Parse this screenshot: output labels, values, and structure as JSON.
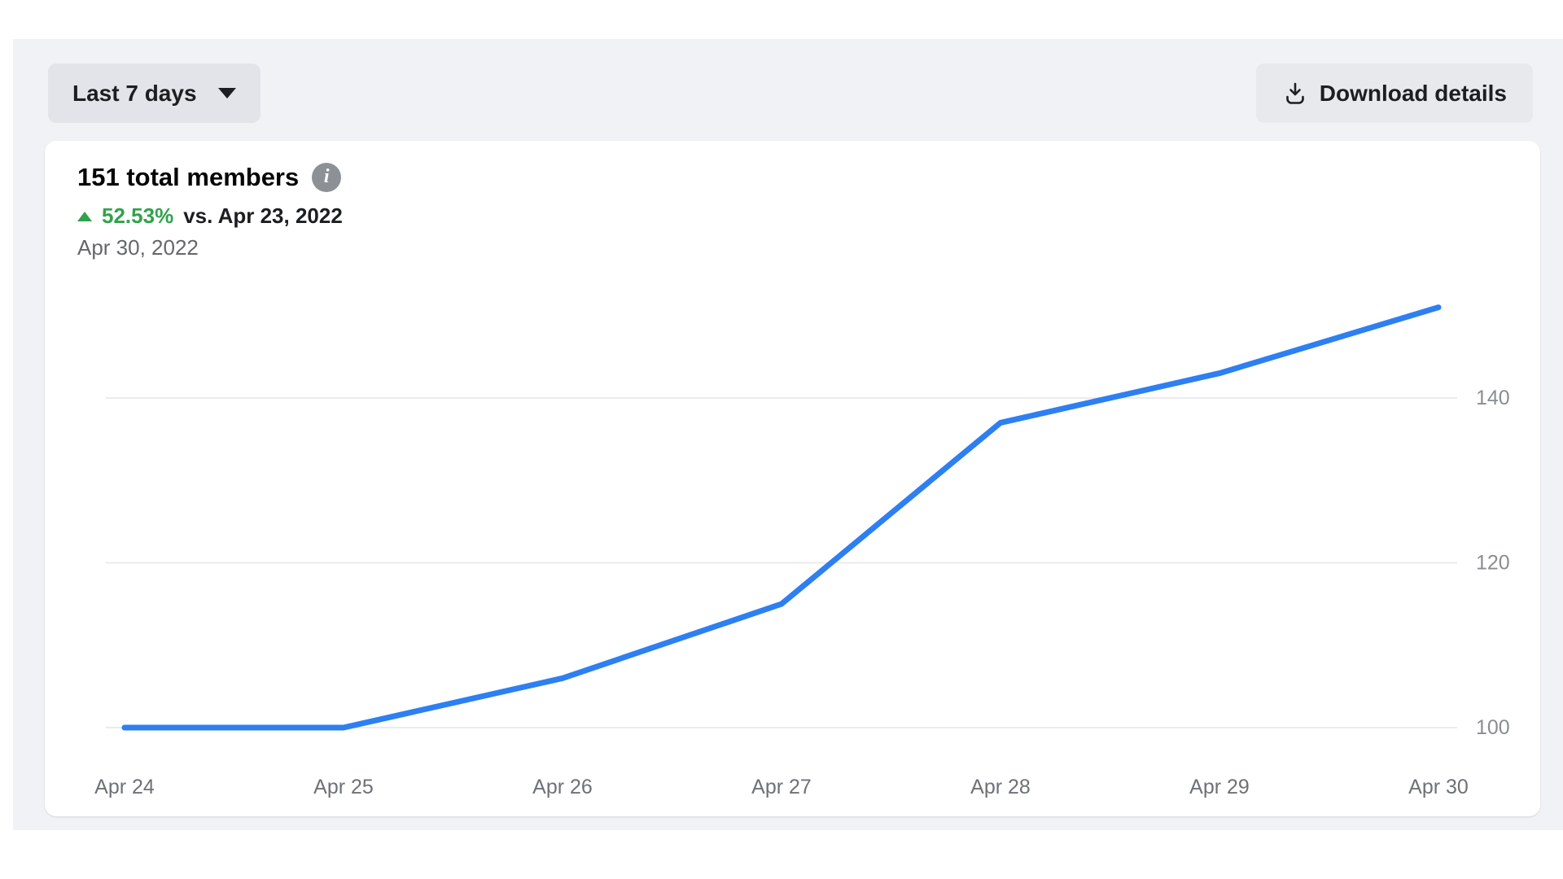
{
  "colors": {
    "line_blue": "#2d7ff2",
    "positive_green": "#31a24c",
    "grid_line": "#e9ebee",
    "y_tick_text": "#8a8d91",
    "x_tick_text": "#6e7176",
    "panel_gray": "#f0f2f5"
  },
  "toolbar": {
    "range_selector": {
      "label": "Last 7 days"
    },
    "download_button": {
      "label": "Download details"
    }
  },
  "card": {
    "title": "151 total members",
    "info_icon_glyph": "i",
    "change": {
      "direction": "up",
      "percent": "52.53%",
      "comparison": "vs. Apr 23, 2022"
    },
    "current_date": "Apr 30, 2022"
  },
  "chart_data": {
    "type": "line",
    "title": "151 total members",
    "x": [
      "Apr 24",
      "Apr 25",
      "Apr 26",
      "Apr 27",
      "Apr 28",
      "Apr 29",
      "Apr 30"
    ],
    "series": [
      {
        "name": "total members",
        "values": [
          100,
          100,
          106,
          115,
          137,
          143,
          151
        ]
      }
    ],
    "yticks": [
      100,
      120,
      140
    ],
    "ylim": [
      97,
      158
    ],
    "grid": "horizontal",
    "legend": "none",
    "y_axis_side": "right"
  }
}
